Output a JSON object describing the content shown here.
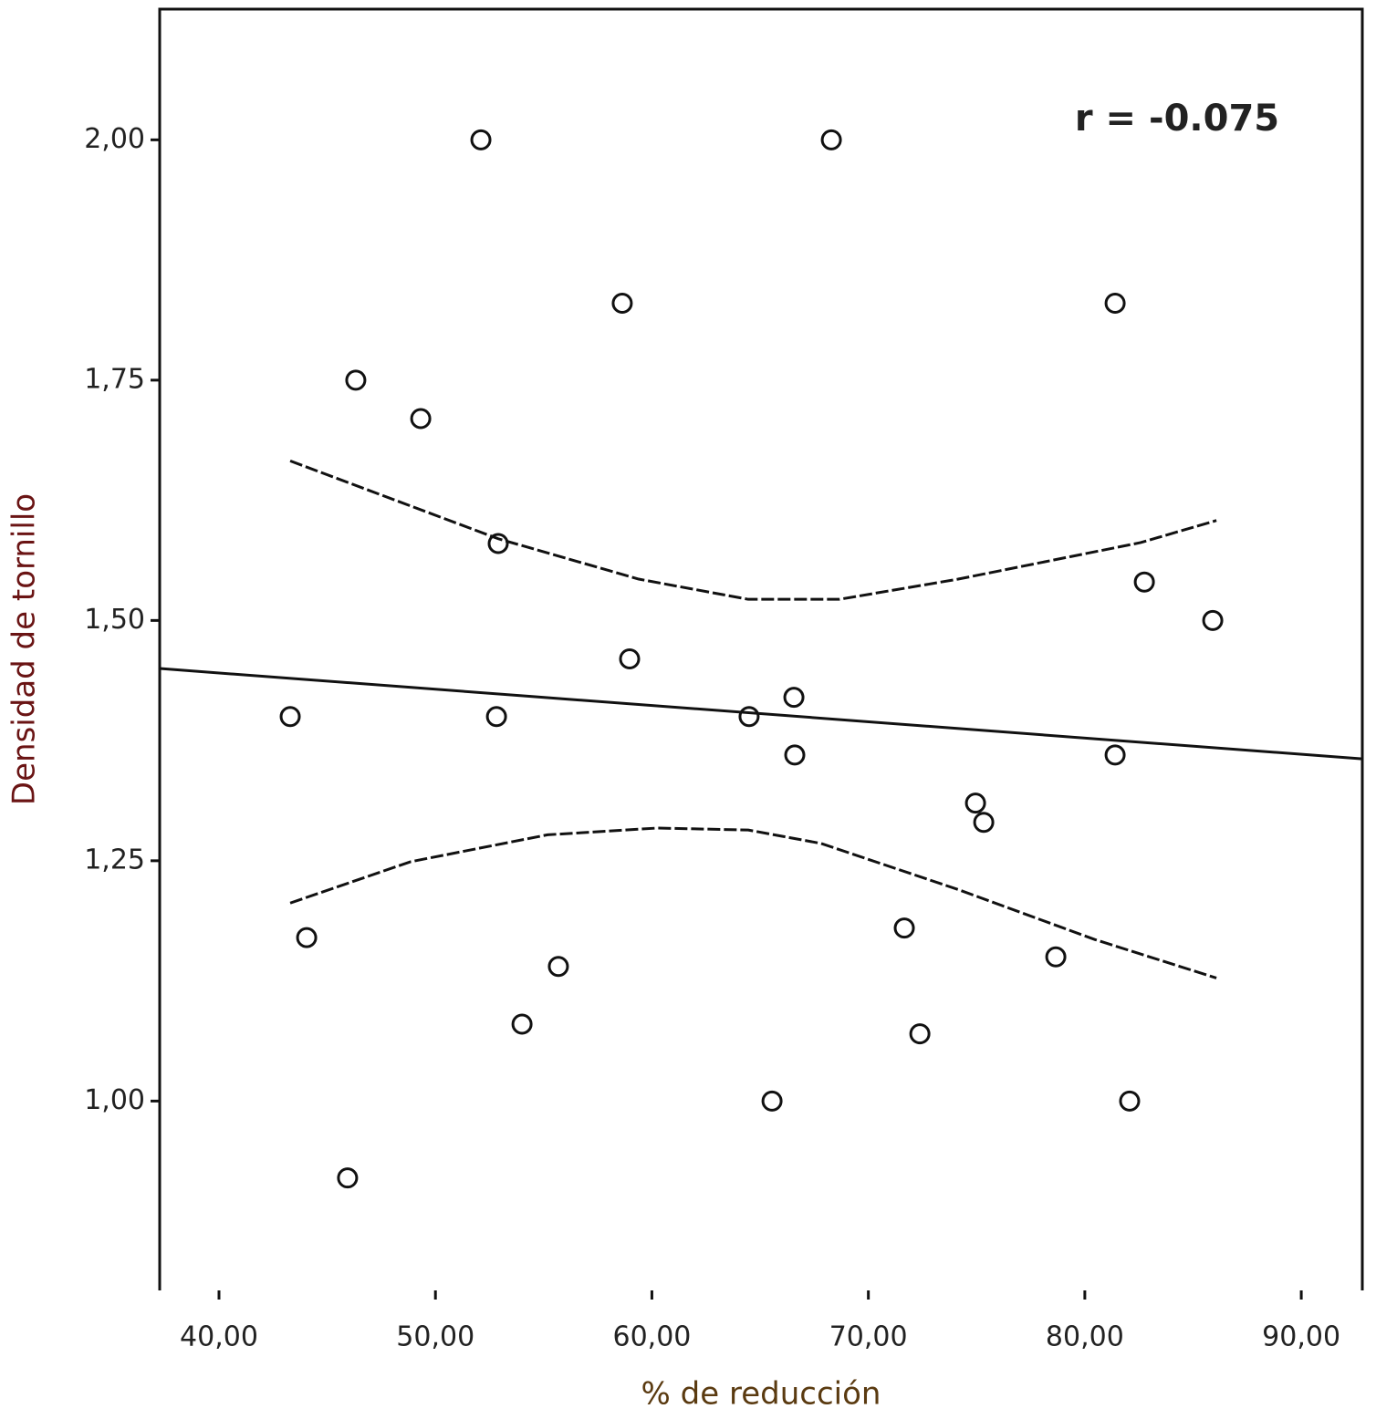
{
  "chart_data": {
    "type": "scatter",
    "x_label": "% de reducción",
    "y_label": "Densidad de tornillo",
    "annotation": "r = -0.075",
    "x": [
      52.1,
      68.29,
      58.63,
      81.4,
      46.32,
      49.32,
      52.9,
      82.75,
      85.91,
      58.97,
      66.56,
      43.29,
      52.82,
      64.49,
      66.6,
      81.4,
      74.95,
      75.33,
      71.66,
      44.05,
      78.66,
      55.68,
      54.0,
      72.38,
      65.55,
      82.07,
      45.94
    ],
    "values": [
      2.0,
      2.0,
      1.83,
      1.83,
      1.75,
      1.71,
      1.58,
      1.54,
      1.5,
      1.46,
      1.42,
      1.4,
      1.4,
      1.4,
      1.36,
      1.36,
      1.31,
      1.29,
      1.18,
      1.17,
      1.15,
      1.14,
      1.08,
      1.07,
      1.0,
      1.0,
      0.92
    ],
    "lines": [
      {
        "x": [
          37.26,
          92.82
        ],
        "values": [
          1.45,
          1.356
        ],
        "dashed": false
      },
      {
        "x": [
          43.29,
          52.9,
          59.39,
          64.45,
          68.67,
          74.15,
          82.58,
          86.08
        ],
        "values": [
          1.666,
          1.585,
          1.543,
          1.522,
          1.522,
          1.543,
          1.581,
          1.604
        ],
        "dashed": true
      },
      {
        "x": [
          43.29,
          48.85,
          55.18,
          60.24,
          64.45,
          67.82,
          74.15,
          80.47,
          86.08
        ],
        "values": [
          1.206,
          1.249,
          1.277,
          1.284,
          1.282,
          1.268,
          1.22,
          1.168,
          1.128
        ],
        "dashed": true
      }
    ],
    "xlim": [
      37.26,
      92.82
    ],
    "ylim": [
      0.803,
      2.136
    ],
    "xticks": [
      {
        "value": 40,
        "label": "40,00"
      },
      {
        "value": 50,
        "label": "50,00"
      },
      {
        "value": 60,
        "label": "60,00"
      },
      {
        "value": 70,
        "label": "70,00"
      },
      {
        "value": 80,
        "label": "80,00"
      },
      {
        "value": 90,
        "label": "90,00"
      }
    ],
    "yticks": [
      {
        "value": 1,
        "label": "1,00"
      },
      {
        "value": 1.25,
        "label": "1,25"
      },
      {
        "value": 1.5,
        "label": "1,50"
      },
      {
        "value": 1.75,
        "label": "1,75"
      },
      {
        "value": 2,
        "label": "2,00"
      }
    ]
  }
}
